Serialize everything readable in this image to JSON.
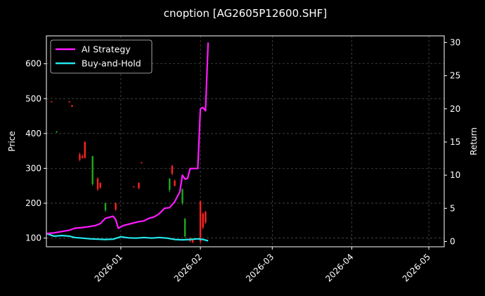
{
  "chart_data": {
    "type": "line",
    "title": "cnoption [AG2605P12600.SHF]",
    "ylabel_left": "Price",
    "ylabel_right": "Return",
    "x_ticks": [
      "2026-01",
      "2026-02",
      "2026-03",
      "2026-04",
      "2026-05"
    ],
    "x_tick_dates": [
      "2026-01-01",
      "2026-02-01",
      "2026-03-01",
      "2026-04-01",
      "2026-05-01"
    ],
    "xlim": [
      "2025-12-03",
      "2026-05-07"
    ],
    "left_ticks": [
      100,
      200,
      300,
      400,
      500,
      600
    ],
    "left_ylim": [
      75,
      680
    ],
    "right_ticks": [
      0,
      5,
      10,
      15,
      20,
      25,
      30
    ],
    "right_ylim": [
      -0.8,
      31
    ],
    "grid": true,
    "legend_position": "upper-left",
    "colors": {
      "background": "#000000",
      "ai_strategy": "#ff1aff",
      "buy_and_hold": "#22e8ee",
      "candle_up": "#ff2222",
      "candle_down": "#1fa81f",
      "grid": "#555555"
    },
    "series": [
      {
        "name": "AI Strategy",
        "axis": "right",
        "points": [
          [
            "2025-12-03",
            1.2
          ],
          [
            "2025-12-06",
            1.3
          ],
          [
            "2025-12-09",
            1.5
          ],
          [
            "2025-12-12",
            1.7
          ],
          [
            "2025-12-14",
            2.0
          ],
          [
            "2025-12-17",
            2.1
          ],
          [
            "2025-12-19",
            2.2
          ],
          [
            "2025-12-22",
            2.4
          ],
          [
            "2025-12-24",
            2.7
          ],
          [
            "2025-12-26",
            3.5
          ],
          [
            "2025-12-29",
            3.8
          ],
          [
            "2025-12-30",
            3.3
          ],
          [
            "2025-12-31",
            2.0
          ],
          [
            "2026-01-02",
            2.4
          ],
          [
            "2026-01-05",
            2.7
          ],
          [
            "2026-01-08",
            3.0
          ],
          [
            "2026-01-10",
            3.1
          ],
          [
            "2026-01-12",
            3.5
          ],
          [
            "2026-01-14",
            3.7
          ],
          [
            "2026-01-16",
            4.2
          ],
          [
            "2026-01-18",
            5.0
          ],
          [
            "2026-01-20",
            5.1
          ],
          [
            "2026-01-22",
            6.0
          ],
          [
            "2026-01-24",
            7.5
          ],
          [
            "2026-01-25",
            10.0
          ],
          [
            "2026-01-26",
            9.4
          ],
          [
            "2026-01-27",
            9.5
          ],
          [
            "2026-01-28",
            11.0
          ],
          [
            "2026-01-29",
            11.0
          ],
          [
            "2026-01-30",
            11.0
          ],
          [
            "2026-01-31",
            11.0
          ],
          [
            "2026-02-01",
            20.0
          ],
          [
            "2026-02-02",
            20.2
          ],
          [
            "2026-02-03",
            19.7
          ],
          [
            "2026-02-04",
            30.0
          ]
        ]
      },
      {
        "name": "Buy-and-Hold",
        "axis": "right",
        "points": [
          [
            "2025-12-03",
            1.2
          ],
          [
            "2025-12-06",
            0.8
          ],
          [
            "2025-12-09",
            0.9
          ],
          [
            "2025-12-12",
            0.8
          ],
          [
            "2025-12-14",
            0.6
          ],
          [
            "2025-12-17",
            0.5
          ],
          [
            "2025-12-20",
            0.4
          ],
          [
            "2025-12-23",
            0.35
          ],
          [
            "2025-12-26",
            0.3
          ],
          [
            "2025-12-29",
            0.35
          ],
          [
            "2026-01-01",
            0.7
          ],
          [
            "2026-01-04",
            0.55
          ],
          [
            "2026-01-07",
            0.5
          ],
          [
            "2026-01-10",
            0.6
          ],
          [
            "2026-01-13",
            0.5
          ],
          [
            "2026-01-16",
            0.6
          ],
          [
            "2026-01-19",
            0.5
          ],
          [
            "2026-01-22",
            0.3
          ],
          [
            "2026-01-25",
            0.25
          ],
          [
            "2026-01-28",
            0.3
          ],
          [
            "2026-01-31",
            0.4
          ],
          [
            "2026-02-02",
            0.3
          ],
          [
            "2026-02-04",
            0.1
          ]
        ]
      }
    ],
    "candles": [
      {
        "date": "2025-12-05",
        "open": 490,
        "close": 492,
        "high": 493,
        "low": 489,
        "dir": "up"
      },
      {
        "date": "2025-12-07",
        "open": 406,
        "close": 404,
        "high": 407,
        "low": 402,
        "dir": "down"
      },
      {
        "date": "2025-12-12",
        "open": 492,
        "close": 490,
        "high": 493,
        "low": 488,
        "dir": "up"
      },
      {
        "date": "2025-12-13",
        "open": 481,
        "close": 477,
        "high": 482,
        "low": 476,
        "dir": "up"
      },
      {
        "date": "2025-12-16",
        "open": 340,
        "close": 325,
        "high": 345,
        "low": 320,
        "dir": "up"
      },
      {
        "date": "2025-12-17",
        "open": 335,
        "close": 330,
        "high": 340,
        "low": 328,
        "dir": "up"
      },
      {
        "date": "2025-12-18",
        "open": 375,
        "close": 330,
        "high": 378,
        "low": 328,
        "dir": "up"
      },
      {
        "date": "2025-12-21",
        "open": 335,
        "close": 255,
        "high": 336,
        "low": 250,
        "dir": "down"
      },
      {
        "date": "2025-12-23",
        "open": 270,
        "close": 240,
        "high": 275,
        "low": 235,
        "dir": "up"
      },
      {
        "date": "2025-12-24",
        "open": 258,
        "close": 245,
        "high": 260,
        "low": 242,
        "dir": "up"
      },
      {
        "date": "2025-12-26",
        "open": 200,
        "close": 180,
        "high": 202,
        "low": 175,
        "dir": "down"
      },
      {
        "date": "2025-12-30",
        "open": 200,
        "close": 182,
        "high": 202,
        "low": 178,
        "dir": "up"
      },
      {
        "date": "2026-01-06",
        "open": 248,
        "close": 246,
        "high": 249,
        "low": 245,
        "dir": "up"
      },
      {
        "date": "2026-01-08",
        "open": 258,
        "close": 243,
        "high": 260,
        "low": 240,
        "dir": "up"
      },
      {
        "date": "2026-01-09",
        "open": 317,
        "close": 315,
        "high": 318,
        "low": 314,
        "dir": "up"
      },
      {
        "date": "2026-01-20",
        "open": 270,
        "close": 238,
        "high": 272,
        "low": 232,
        "dir": "down"
      },
      {
        "date": "2026-01-21",
        "open": 307,
        "close": 285,
        "high": 310,
        "low": 280,
        "dir": "up"
      },
      {
        "date": "2026-01-22",
        "open": 265,
        "close": 250,
        "high": 268,
        "low": 248,
        "dir": "up"
      },
      {
        "date": "2026-01-25",
        "open": 240,
        "close": 200,
        "high": 242,
        "low": 195,
        "dir": "down"
      },
      {
        "date": "2026-01-26",
        "open": 155,
        "close": 105,
        "high": 158,
        "low": 100,
        "dir": "down"
      },
      {
        "date": "2026-01-28",
        "open": 100,
        "close": 92,
        "high": 102,
        "low": 88,
        "dir": "up"
      },
      {
        "date": "2026-01-29",
        "open": 95,
        "close": 88,
        "high": 96,
        "low": 85,
        "dir": "up"
      },
      {
        "date": "2026-02-01",
        "open": 205,
        "close": 90,
        "high": 208,
        "low": 84,
        "dir": "up"
      },
      {
        "date": "2026-02-02",
        "open": 170,
        "close": 130,
        "high": 175,
        "low": 125,
        "dir": "up"
      },
      {
        "date": "2026-02-03",
        "open": 175,
        "close": 145,
        "high": 178,
        "low": 140,
        "dir": "up"
      }
    ]
  }
}
